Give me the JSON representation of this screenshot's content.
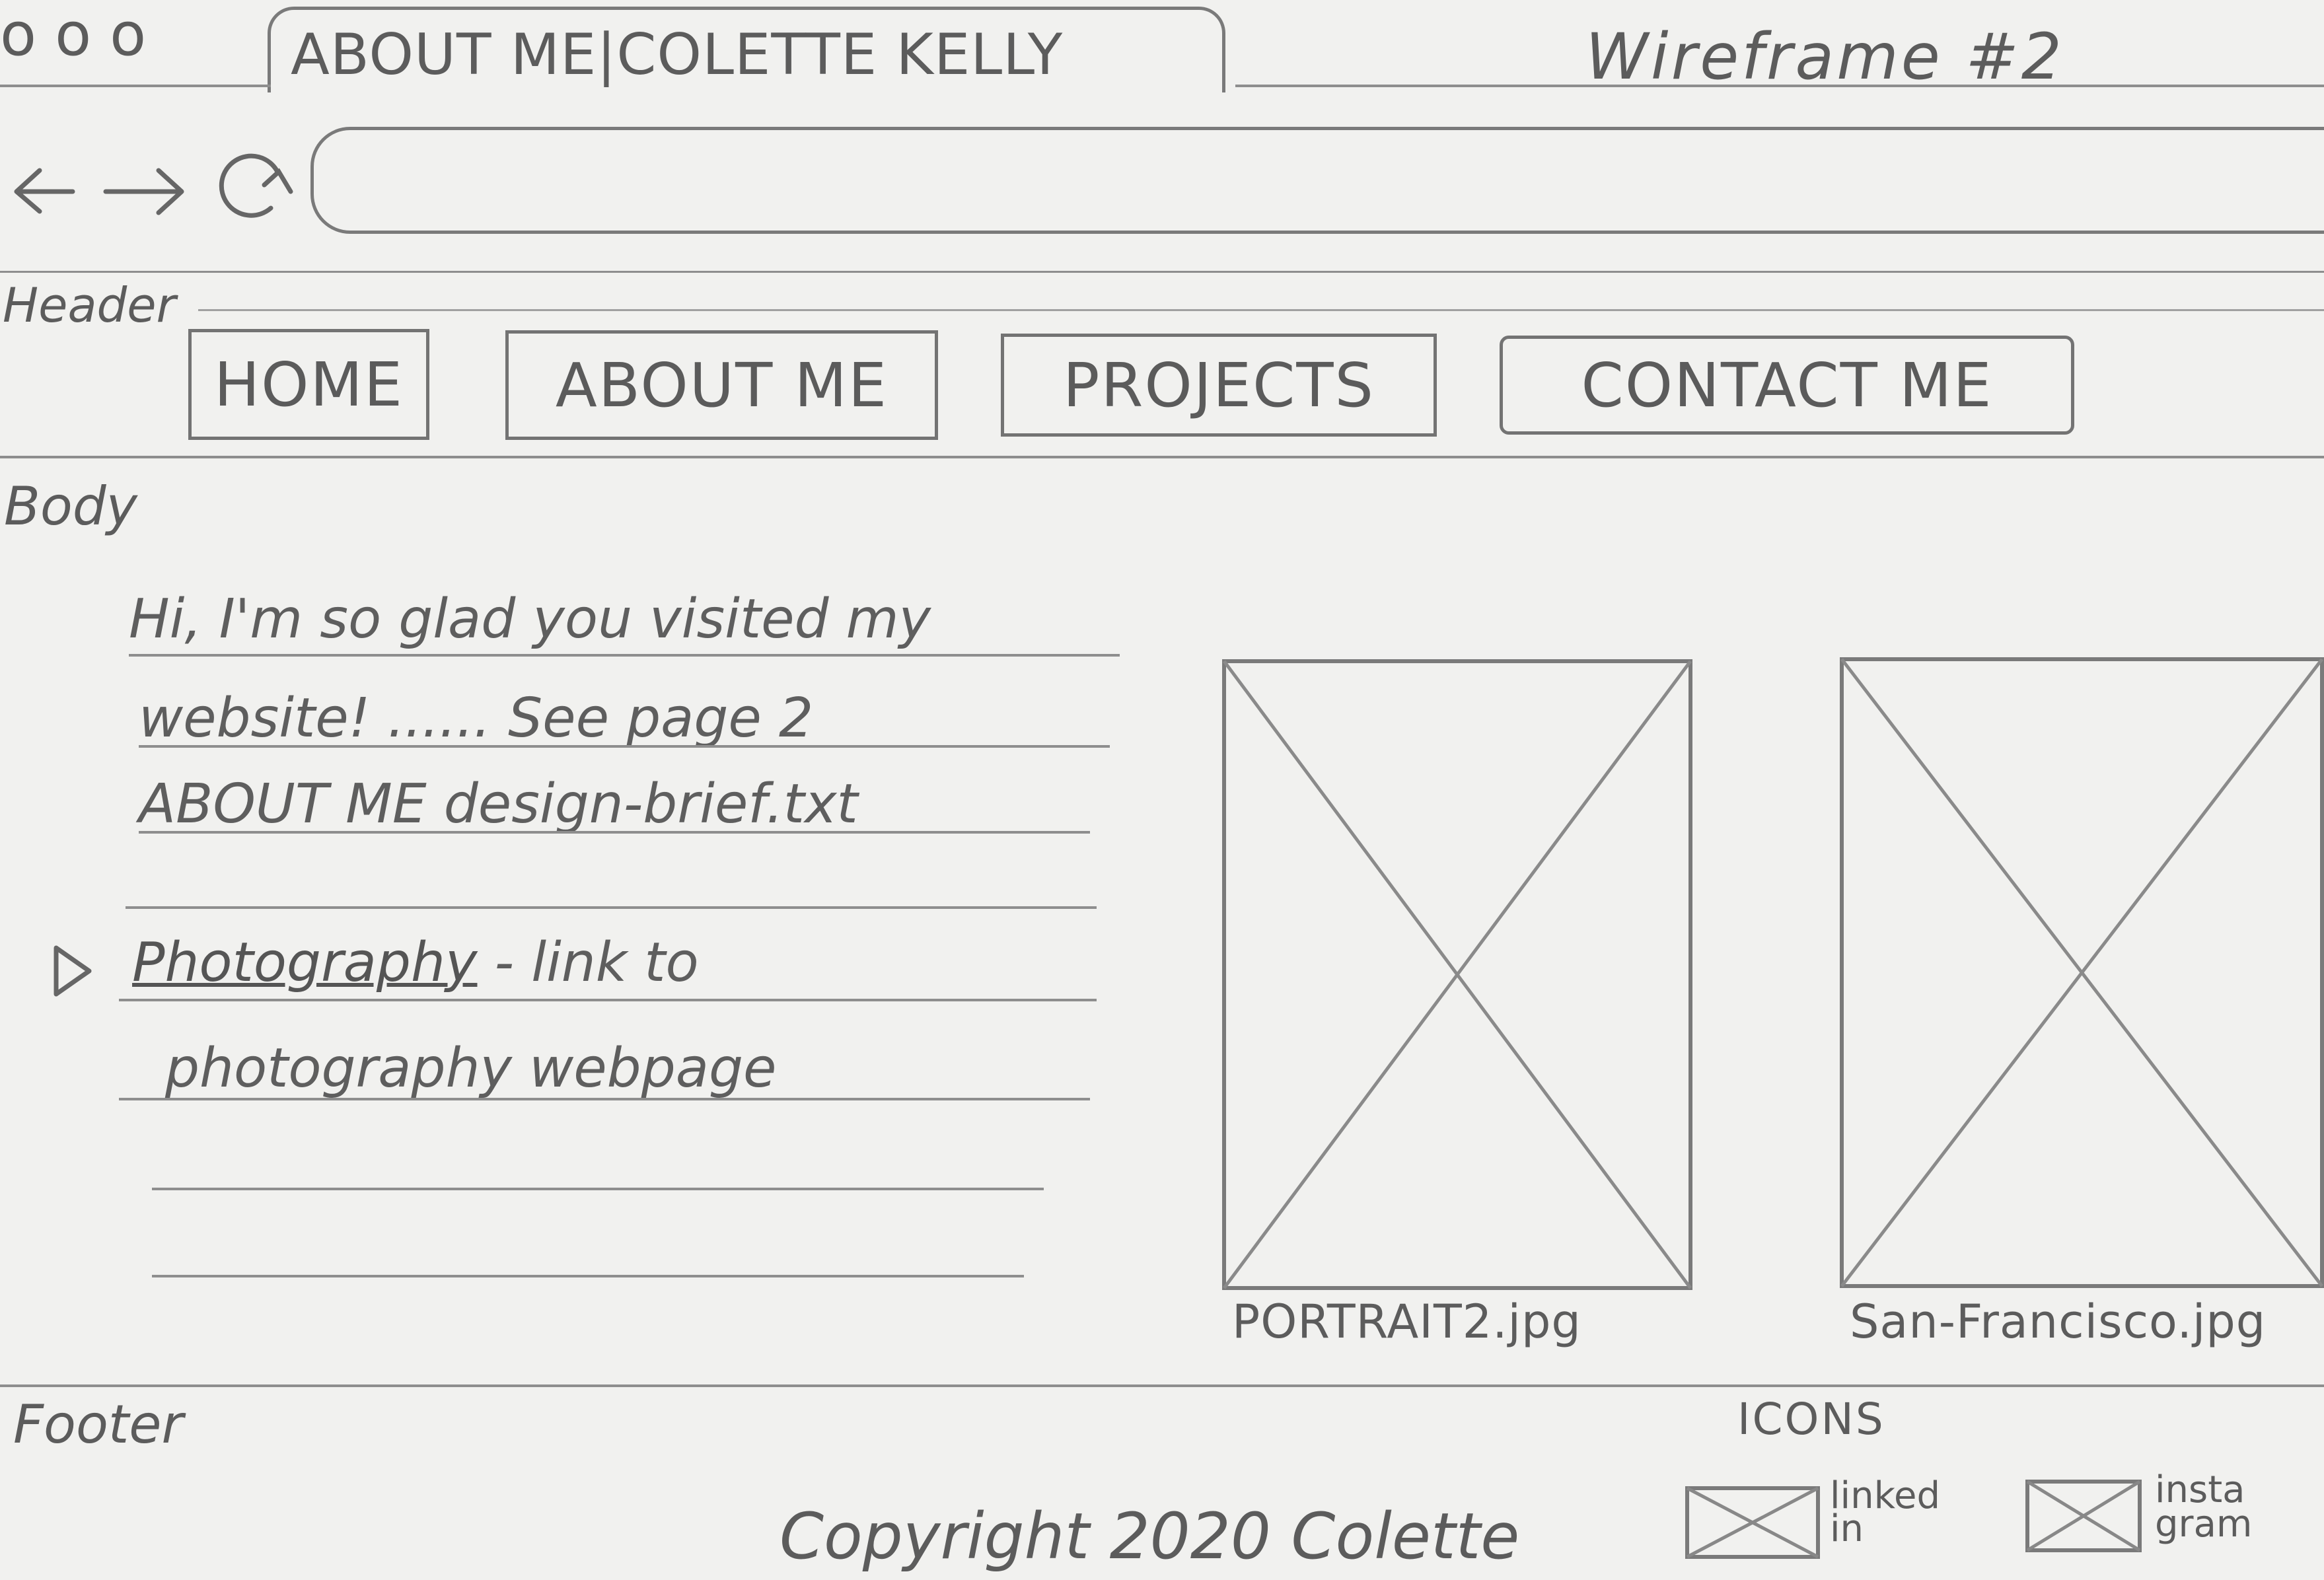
{
  "window": {
    "dots": [
      "o",
      "o",
      "o"
    ],
    "tab_title": "ABOUT ME|COLETTE KELLY",
    "wireframe_label": "Wireframe #2"
  },
  "toolbar": {
    "back_icon": "left-arrow-icon",
    "forward_icon": "right-arrow-icon",
    "reload_icon": "reload-icon",
    "address_value": ""
  },
  "header": {
    "section_label": "Header",
    "nav": [
      {
        "label": "HOME"
      },
      {
        "label": "ABOUT ME"
      },
      {
        "label": "PROJECTS"
      },
      {
        "label": "CONTACT ME"
      }
    ]
  },
  "body": {
    "section_label": "Body",
    "intro_lines": [
      "Hi, I'm so glad you visited my",
      "website! ...... See page 2",
      "ABOUT ME design-brief.txt"
    ],
    "bullet_link": "Photography",
    "bullet_rest": " - link to",
    "bullet_line2": "photography webpage",
    "images": [
      {
        "caption": "PORTRAIT2.jpg"
      },
      {
        "caption": "San-Francisco.jpg"
      }
    ]
  },
  "footer": {
    "section_label": "Footer",
    "icons_label": "ICONS",
    "copyright": "Copyright 2020 Colette",
    "social": [
      {
        "label": "linked in"
      },
      {
        "label": "insta gram"
      }
    ]
  }
}
